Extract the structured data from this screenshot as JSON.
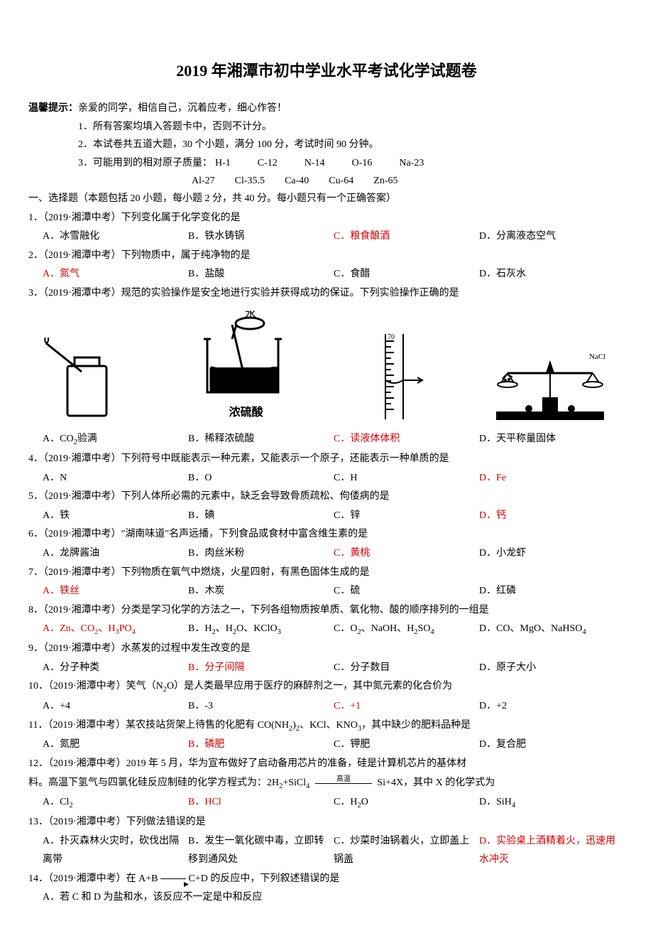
{
  "title": "2019 年湘潭市初中学业水平考试化学试题卷",
  "meta": {
    "tip_label": "温馨提示：",
    "tip_text": "亲爱的同学，相信自己，沉着应考，细心作答！",
    "line1": "1．所有答案均填入答题卡中，否则不计分。",
    "line2": "2．本试卷共五道大题，30 个小题，满分 100 分，考试时间 90 分钟。",
    "line3_prefix": "3．可能用到的相对原子质量：",
    "masses_row1": [
      "H-1",
      "C-12",
      "N-14",
      "O-16",
      "Na-23"
    ],
    "masses_row2": [
      "Al-27",
      "Cl-35.5",
      "Ca-40",
      "Cu-64",
      "Zn-65"
    ]
  },
  "section_head": "一、选择题（本题包括 20 小题，每小题 2 分，共 40 分。每小题只有一个正确答案）",
  "questions": [
    {
      "n": "1",
      "stem": "．（2019·湘潭中考）下列变化属于化学变化的是",
      "opts": [
        {
          "l": "A．冰雪融化"
        },
        {
          "l": "B．铁水铸锅"
        },
        {
          "l": "C．粮食酿酒",
          "red": true
        },
        {
          "l": "D．分离液态空气"
        }
      ]
    },
    {
      "n": "2",
      "stem": "．（2019·湘潭中考）下列物质中，属于纯净物的是",
      "opts": [
        {
          "l": "A．氮气",
          "red": true
        },
        {
          "l": "B．盐酸"
        },
        {
          "l": "C．食醋"
        },
        {
          "l": "D．石灰水"
        }
      ]
    },
    {
      "n": "3",
      "stem": "．（2019·湘潭中考）规范的实验操作是安全地进行实验并获得成功的保证。下列实验操作正确的是",
      "figs": true,
      "opts": [
        {
          "l": "A．CO₂验满"
        },
        {
          "l": "B．稀释浓硫酸"
        },
        {
          "l": "C．读液体体积",
          "red": true
        },
        {
          "l": "D．天平称量固体"
        }
      ]
    },
    {
      "n": "4",
      "stem": "．（2019·湘潭中考）下列符号中既能表示一种元素，又能表示一个原子，还能表示一种单质的是",
      "opts": [
        {
          "l": "A．N"
        },
        {
          "l": "B．O"
        },
        {
          "l": "C．H"
        },
        {
          "l": "D．Fe",
          "red": true
        }
      ]
    },
    {
      "n": "5",
      "stem": "．（2019·湘潭中考）下列人体所必需的元素中，缺乏会导致骨质疏松、佝偻病的是",
      "opts": [
        {
          "l": "A．铁"
        },
        {
          "l": "B．碘"
        },
        {
          "l": "C．锌"
        },
        {
          "l": "D．钙",
          "red": true
        }
      ]
    },
    {
      "n": "6",
      "stem": "．（2019·湘潭中考）\"湖南味道\"名声远播，下列食品或食材中富含维生素的是",
      "opts": [
        {
          "l": "A．龙牌酱油"
        },
        {
          "l": "B．肉丝米粉"
        },
        {
          "l": "C．黄桃",
          "red": true
        },
        {
          "l": "D．小龙虾"
        }
      ]
    },
    {
      "n": "7",
      "stem": "．（2019·湘潭中考）下列物质在氧气中燃烧，火星四射，有黑色固体生成的是",
      "opts": [
        {
          "l": "A．铁丝",
          "red": true
        },
        {
          "l": "B．木炭"
        },
        {
          "l": "C．硫"
        },
        {
          "l": "D．红磷"
        }
      ]
    },
    {
      "n": "8",
      "stem": "．（2019·湘潭中考）分类是学习化学的方法之一，下列各组物质按单质、氧化物、酸的顺序排列的一组是",
      "opts": [
        {
          "l": "A．Zn、CO₂、H₃PO₄",
          "red": true
        },
        {
          "l": "B．H₂、H₂O、KClO₃"
        },
        {
          "l": "C．O₂、NaOH、H₂SO₄"
        },
        {
          "l": "D．CO、MgO、NaHSO₄"
        }
      ]
    },
    {
      "n": "9",
      "stem": "．（2019·湘潭中考）水蒸发的过程中发生改变的是",
      "opts": [
        {
          "l": "A．分子种类"
        },
        {
          "l": "B．分子间隔",
          "red": true
        },
        {
          "l": "C．分子数目"
        },
        {
          "l": "D．原子大小"
        }
      ]
    },
    {
      "n": "10",
      "stem": "．（2019·湘潭中考）笑气（N₂O）是人类最早应用于医疗的麻醉剂之一，其中氮元素的化合价为",
      "opts": [
        {
          "l": "A．+4"
        },
        {
          "l": "B．-3"
        },
        {
          "l": "C．+1",
          "red": true
        },
        {
          "l": "D．+2"
        }
      ]
    },
    {
      "n": "11",
      "stem": "．（2019·湘潭中考）某农技站货架上待售的化肥有 CO(NH₂)₂、KCl、KNO₃，其中缺少的肥料品种是",
      "opts": [
        {
          "l": "A．氮肥"
        },
        {
          "l": "B．磷肥",
          "red": true
        },
        {
          "l": "C．钾肥"
        },
        {
          "l": "D．复合肥"
        }
      ]
    },
    {
      "n": "12",
      "stem": "．（2019·湘潭中考）2019 年 5 月，华为宣布做好了启动备用芯片的准备，硅是计算机芯片的基体材",
      "cont": "料。高温下氢气与四氯化硅反应制硅的化学方程式为：2H₂+SiCl₄ ══高温══ Si+4X，其中 X 的化学式为",
      "opts": [
        {
          "l": "A．Cl₂"
        },
        {
          "l": "B．HCl",
          "red": true
        },
        {
          "l": "C．H₂O"
        },
        {
          "l": "D．SiH₄"
        }
      ]
    },
    {
      "n": "13",
      "stem": "．（2019·湘潭中考）下列做法错误的是",
      "opts2col": true,
      "opts": [
        {
          "l": "A．扑灭森林火灾时，砍伐出隔离带"
        },
        {
          "l": "B．发生一氧化碳中毒，立即转移到通风处"
        },
        {
          "l": "C．炒菜时油锅着火，立即盖上锅盖"
        },
        {
          "l": "D．实验桌上酒精着火，迅速用水冲灭",
          "red": true
        }
      ]
    },
    {
      "n": "14",
      "stem": "．（2019·湘潭中考）在 A+B ──→ C+D 的反应中，下列叙述错误的是",
      "tail": "A．若 C 和 D 为盐和水，该反应不一定是中和反应"
    }
  ],
  "fig_labels": {
    "water": "水",
    "acid": "浓硫酸",
    "nacl": "NaCl"
  }
}
